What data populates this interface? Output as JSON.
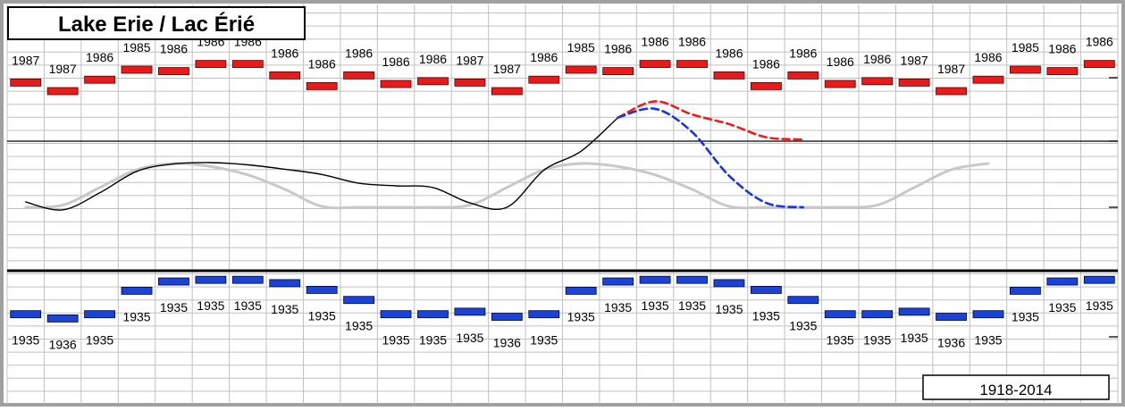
{
  "title": "Lake Erie / Lac Érié",
  "period_label": "1918-2014",
  "chart_data": {
    "type": "line",
    "months_count": 24,
    "series": [
      {
        "style": "black-line",
        "values": [
          0.12,
          -0.06,
          0.33,
          0.82,
          0.99,
          1.02,
          0.97,
          0.87,
          0.75,
          0.55,
          0.49,
          0.45,
          0.1,
          0.0,
          0.85,
          1.28,
          2.05
        ]
      },
      {
        "style": "grey-line",
        "values": [
          0,
          0.05,
          0.45,
          0.86,
          1.0,
          0.93,
          0.74,
          0.41,
          0.02,
          0,
          0,
          0,
          0.05,
          0.45,
          0.86,
          1.0,
          0.93,
          0.74,
          0.41,
          0.02,
          0,
          0,
          0,
          0.05,
          0.45,
          0.86,
          1.0
        ]
      },
      {
        "style": "red-dashed",
        "values": [
          2.05,
          2.42,
          2.12,
          1.9,
          1.6,
          1.55
        ]
      },
      {
        "style": "blue-dashed",
        "values": [
          2.05,
          2.25,
          1.72,
          0.72,
          0.1,
          0.0
        ]
      }
    ],
    "max_record": {
      "values": [
        0.72,
        0.6,
        0.76,
        0.9,
        0.88,
        0.98,
        0.98,
        0.82,
        0.67,
        0.82,
        0.7,
        0.74,
        0.72,
        0.6,
        0.76,
        0.9,
        0.88,
        0.98,
        0.98,
        0.82,
        0.67,
        0.82,
        0.7,
        0.74,
        0.72,
        0.6,
        0.76,
        0.9,
        0.88,
        0.98
      ],
      "years": [
        "1987",
        "1987",
        "1986",
        "1985",
        "1986",
        "1986",
        "1986",
        "1986",
        "1986",
        "1986",
        "1986",
        "1986",
        "1987",
        "1987",
        "1986",
        "1985",
        "1986",
        "1986",
        "1986",
        "1986",
        "1986",
        "1986",
        "1986",
        "1986",
        "1987",
        "1987",
        "1986",
        "1985",
        "1986",
        "1986"
      ]
    },
    "min_record": {
      "values": [
        0.45,
        0.4,
        0.45,
        0.73,
        0.84,
        0.86,
        0.86,
        0.82,
        0.74,
        0.62,
        0.45,
        0.45,
        0.48,
        0.42,
        0.45,
        0.73,
        0.84,
        0.86,
        0.86,
        0.82,
        0.74,
        0.62,
        0.45,
        0.45,
        0.48,
        0.42,
        0.45,
        0.73,
        0.84,
        0.86
      ],
      "years": [
        "1935",
        "1936",
        "1935",
        "1935",
        "1935",
        "1935",
        "1935",
        "1935",
        "1935",
        "1935",
        "1935",
        "1935",
        "1935",
        "1936",
        "1935",
        "1935",
        "1935",
        "1935",
        "1935",
        "1935",
        "1935",
        "1935",
        "1935",
        "1935",
        "1935",
        "1936",
        "1935",
        "1935",
        "1935",
        "1935"
      ]
    },
    "grid": true,
    "colors": {
      "max_bar": "#e81a1a",
      "min_bar": "#1a44d6",
      "black_line": "#000000",
      "grey_line": "#c8c8c8",
      "red_dashed": "#ee1c1c",
      "blue_dashed": "#1833e0",
      "grid": "#c0c0c0",
      "frame": "#a0a0a0"
    }
  }
}
